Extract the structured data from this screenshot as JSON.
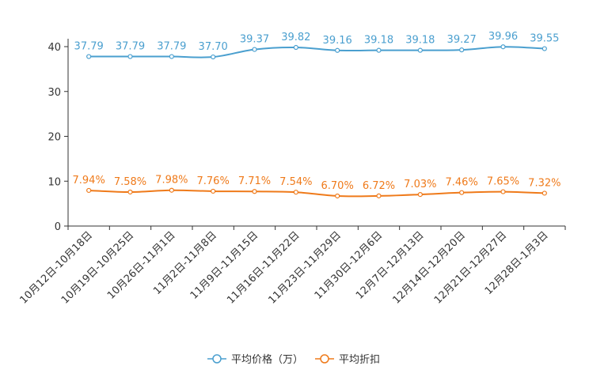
{
  "chart_data": {
    "type": "line",
    "title": "",
    "xlabel": "",
    "ylabel": "",
    "ylim": [
      0,
      40
    ],
    "yticks": [
      0,
      10,
      20,
      30,
      40
    ],
    "grid": false,
    "legend_position": "bottom-center",
    "categories": [
      "10月12日-10月18日",
      "10月19日-10月25日",
      "10月26日-11月1日",
      "11月2日-11月8日",
      "11月9日-11月15日",
      "11月16日-11月22日",
      "11月23日-11月29日",
      "11月30日-12月6日",
      "12月7日-12月13日",
      "12月14日-12月20日",
      "12月21日-12月27日",
      "12月28日-1月3日"
    ],
    "series": [
      {
        "name": "平均价格（万）",
        "color": "#4a9fcf",
        "values": [
          37.79,
          37.79,
          37.79,
          37.7,
          39.37,
          39.82,
          39.16,
          39.18,
          39.18,
          39.27,
          39.96,
          39.55
        ],
        "labels": [
          "37.79",
          "37.79",
          "37.79",
          "37.70",
          "39.37",
          "39.82",
          "39.16",
          "39.18",
          "39.18",
          "39.27",
          "39.96",
          "39.55"
        ]
      },
      {
        "name": "平均折扣",
        "color": "#ef7a1a",
        "values": [
          7.94,
          7.58,
          7.98,
          7.76,
          7.71,
          7.54,
          6.7,
          6.72,
          7.03,
          7.46,
          7.65,
          7.32
        ],
        "labels": [
          "7.94%",
          "7.58%",
          "7.98%",
          "7.76%",
          "7.71%",
          "7.54%",
          "6.70%",
          "6.72%",
          "7.03%",
          "7.46%",
          "7.65%",
          "7.32%"
        ]
      }
    ]
  }
}
